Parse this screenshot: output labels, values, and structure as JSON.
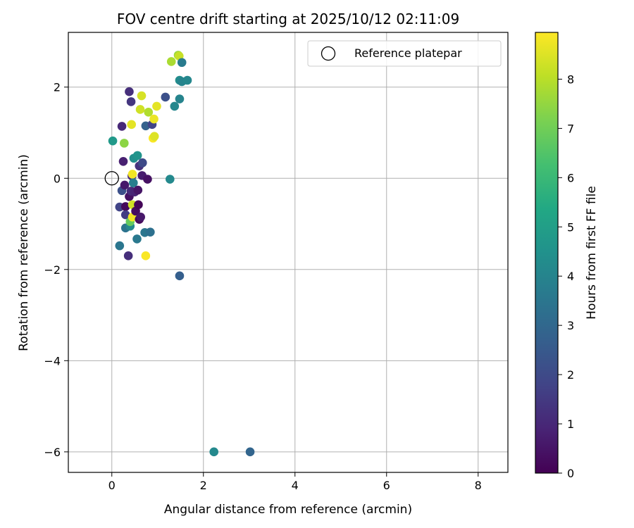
{
  "chart_data": {
    "type": "scatter",
    "title": "FOV centre drift starting at 2025/10/12 02:11:09",
    "xlabel": "Angular distance from reference (arcmin)",
    "ylabel": "Rotation from reference (arcmin)",
    "xlim": [
      -0.95,
      8.65
    ],
    "ylim": [
      -6.45,
      3.2
    ],
    "xticks": [
      0,
      2,
      4,
      6,
      8
    ],
    "yticks": [
      -6,
      -4,
      -2,
      0,
      2
    ],
    "xtick_labels": [
      "0",
      "2",
      "4",
      "6",
      "8"
    ],
    "ytick_labels": [
      "−6",
      "−4",
      "−2",
      "0",
      "2"
    ],
    "grid": true,
    "legend": {
      "label": "Reference platepar",
      "location": "top-right"
    },
    "reference_point": {
      "x": 0,
      "y": 0
    },
    "colorbar": {
      "label": "Hours from first FF file",
      "min": 0,
      "max": 8.95,
      "ticks": [
        0,
        1,
        2,
        3,
        4,
        5,
        6,
        7,
        8
      ],
      "tick_labels": [
        "0",
        "1",
        "2",
        "3",
        "4",
        "5",
        "6",
        "7",
        "8"
      ],
      "colormap": "viridis"
    },
    "points": [
      {
        "x": 0.02,
        "y": 0.82,
        "h": 4.8
      },
      {
        "x": 0.17,
        "y": -0.63,
        "h": 1.8
      },
      {
        "x": 0.17,
        "y": -1.48,
        "h": 3.5
      },
      {
        "x": 0.22,
        "y": 1.14,
        "h": 1.0
      },
      {
        "x": 0.22,
        "y": -0.27,
        "h": 2.2
      },
      {
        "x": 0.25,
        "y": 0.37,
        "h": 0.8
      },
      {
        "x": 0.27,
        "y": 0.77,
        "h": 7.4
      },
      {
        "x": 0.28,
        "y": -0.15,
        "h": 0.6
      },
      {
        "x": 0.3,
        "y": -0.62,
        "h": 0.2
      },
      {
        "x": 0.3,
        "y": -0.8,
        "h": 1.6
      },
      {
        "x": 0.3,
        "y": -1.09,
        "h": 3.4
      },
      {
        "x": 0.36,
        "y": -1.7,
        "h": 1.2
      },
      {
        "x": 0.38,
        "y": 1.9,
        "h": 1.2
      },
      {
        "x": 0.38,
        "y": -0.4,
        "h": 0.4
      },
      {
        "x": 0.4,
        "y": -1.05,
        "h": 4.2
      },
      {
        "x": 0.4,
        "y": -0.95,
        "h": 6.8
      },
      {
        "x": 0.42,
        "y": 1.68,
        "h": 1.4
      },
      {
        "x": 0.42,
        "y": -0.28,
        "h": 1.1
      },
      {
        "x": 0.43,
        "y": 1.18,
        "h": 8.6
      },
      {
        "x": 0.44,
        "y": 0.05,
        "h": 1.0
      },
      {
        "x": 0.45,
        "y": 0.09,
        "h": 8.8
      },
      {
        "x": 0.45,
        "y": -0.58,
        "h": 8.3
      },
      {
        "x": 0.45,
        "y": -0.85,
        "h": 8.8
      },
      {
        "x": 0.47,
        "y": -0.1,
        "h": 3.8
      },
      {
        "x": 0.48,
        "y": 0.44,
        "h": 4.4
      },
      {
        "x": 0.5,
        "y": -0.3,
        "h": 0.9
      },
      {
        "x": 0.52,
        "y": -0.72,
        "h": 0.3
      },
      {
        "x": 0.55,
        "y": -1.33,
        "h": 3.6
      },
      {
        "x": 0.56,
        "y": 0.5,
        "h": 4.6
      },
      {
        "x": 0.57,
        "y": -0.26,
        "h": 0.5
      },
      {
        "x": 0.58,
        "y": -0.58,
        "h": 0.1
      },
      {
        "x": 0.6,
        "y": -0.9,
        "h": 0.2
      },
      {
        "x": 0.6,
        "y": 0.27,
        "h": 1.3
      },
      {
        "x": 0.62,
        "y": 1.51,
        "h": 8.3
      },
      {
        "x": 0.63,
        "y": -0.85,
        "h": 0.6
      },
      {
        "x": 0.65,
        "y": 1.81,
        "h": 8.4
      },
      {
        "x": 0.66,
        "y": 0.06,
        "h": 0.7
      },
      {
        "x": 0.67,
        "y": 0.34,
        "h": 2.0
      },
      {
        "x": 0.72,
        "y": -1.19,
        "h": 3.5
      },
      {
        "x": 0.74,
        "y": -1.7,
        "h": 8.9
      },
      {
        "x": 0.74,
        "y": 1.15,
        "h": 2.8
      },
      {
        "x": 0.78,
        "y": -0.02,
        "h": 0.4
      },
      {
        "x": 0.8,
        "y": 1.45,
        "h": 7.9
      },
      {
        "x": 0.84,
        "y": -1.18,
        "h": 3.3
      },
      {
        "x": 0.88,
        "y": 1.18,
        "h": 1.8
      },
      {
        "x": 0.9,
        "y": 0.88,
        "h": 8.9
      },
      {
        "x": 0.92,
        "y": 1.3,
        "h": 8.7
      },
      {
        "x": 0.93,
        "y": 0.92,
        "h": 8.5
      },
      {
        "x": 0.98,
        "y": 1.58,
        "h": 8.6
      },
      {
        "x": 1.17,
        "y": 1.78,
        "h": 2.2
      },
      {
        "x": 1.27,
        "y": -0.02,
        "h": 4.2
      },
      {
        "x": 1.3,
        "y": 2.56,
        "h": 7.8
      },
      {
        "x": 1.37,
        "y": 1.58,
        "h": 4.1
      },
      {
        "x": 1.45,
        "y": 2.7,
        "h": 7.6
      },
      {
        "x": 1.47,
        "y": 2.68,
        "h": 8.2
      },
      {
        "x": 1.48,
        "y": 2.15,
        "h": 4.3
      },
      {
        "x": 1.48,
        "y": 1.74,
        "h": 4.0
      },
      {
        "x": 1.48,
        "y": -2.14,
        "h": 2.7
      },
      {
        "x": 1.53,
        "y": 2.12,
        "h": 4.0
      },
      {
        "x": 1.53,
        "y": 2.54,
        "h": 3.7
      },
      {
        "x": 1.65,
        "y": 2.15,
        "h": 4.1
      },
      {
        "x": 2.23,
        "y": -6.0,
        "h": 4.2
      },
      {
        "x": 3.02,
        "y": -6.0,
        "h": 2.9
      }
    ]
  }
}
